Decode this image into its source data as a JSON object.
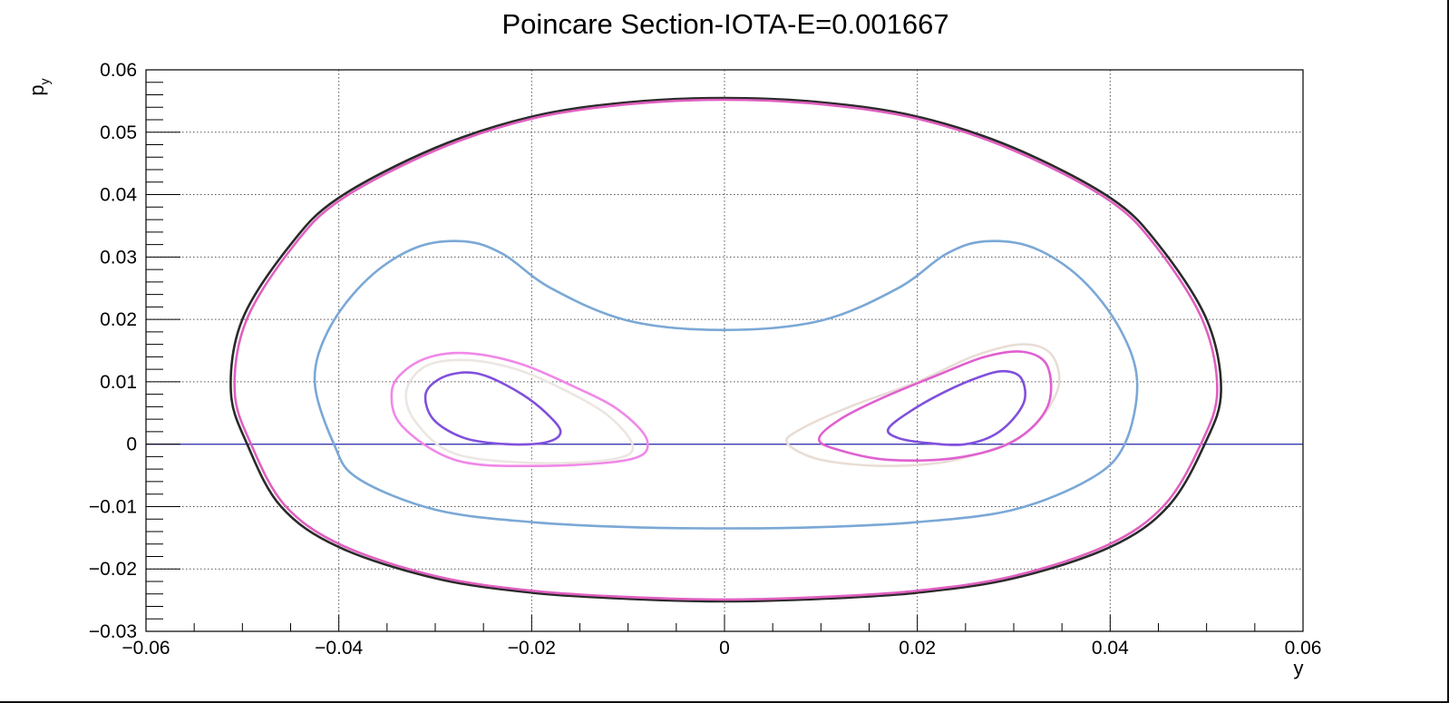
{
  "chart_data": {
    "type": "scatter",
    "title": "Poincare Section-IOTA-E=0.001667",
    "xlabel": "y",
    "ylabel_main": "p",
    "ylabel_sub": "y",
    "xlim": [
      -0.06,
      0.06
    ],
    "ylim": [
      -0.03,
      0.06
    ],
    "grid": true,
    "x_ticks": [
      -0.06,
      -0.04,
      -0.02,
      0,
      0.02,
      0.04,
      0.06
    ],
    "x_tick_labels": [
      "−0.06",
      "−0.04",
      "−0.02",
      "0",
      "0.02",
      "0.04",
      "0.06"
    ],
    "y_ticks": [
      -0.03,
      -0.02,
      -0.01,
      0,
      0.01,
      0.02,
      0.03,
      0.04,
      0.05,
      0.06
    ],
    "y_tick_labels": [
      "−0.03",
      "−0.02",
      "−0.01",
      "0",
      "0.01",
      "0.02",
      "0.03",
      "0.04",
      "0.05",
      "0.06"
    ],
    "reference_line": {
      "y": 0,
      "color": "#3b3bb0"
    },
    "series": [
      {
        "color": "#2a2a2a",
        "points": [
          [
            -0.0512,
            0.0085
          ],
          [
            -0.0495,
            0.0
          ],
          [
            -0.046,
            -0.01
          ],
          [
            -0.04,
            -0.0165
          ],
          [
            -0.03,
            -0.0215
          ],
          [
            -0.02,
            -0.0238
          ],
          [
            -0.01,
            -0.0248
          ],
          [
            0.0,
            -0.0252
          ],
          [
            0.01,
            -0.0248
          ],
          [
            0.02,
            -0.0238
          ],
          [
            0.03,
            -0.0215
          ],
          [
            0.04,
            -0.0165
          ],
          [
            0.046,
            -0.01
          ],
          [
            0.0498,
            0.0
          ],
          [
            0.0515,
            0.0085
          ],
          [
            0.05,
            0.02
          ],
          [
            0.045,
            0.032
          ],
          [
            0.04,
            0.0395
          ],
          [
            0.03,
            0.0475
          ],
          [
            0.02,
            0.0525
          ],
          [
            0.01,
            0.0548
          ],
          [
            0.0,
            0.0555
          ],
          [
            -0.01,
            0.0548
          ],
          [
            -0.02,
            0.0525
          ],
          [
            -0.03,
            0.0475
          ],
          [
            -0.04,
            0.0395
          ],
          [
            -0.045,
            0.032
          ],
          [
            -0.05,
            0.02
          ]
        ]
      },
      {
        "color": "#e060c0",
        "points": [
          [
            -0.0508,
            0.0085
          ],
          [
            -0.0491,
            0.0
          ],
          [
            -0.0456,
            -0.0098
          ],
          [
            -0.0397,
            -0.0162
          ],
          [
            -0.0298,
            -0.0212
          ],
          [
            -0.0199,
            -0.0235
          ],
          [
            -0.0099,
            -0.0245
          ],
          [
            0.0,
            -0.0249
          ],
          [
            0.0099,
            -0.0245
          ],
          [
            0.0199,
            -0.0235
          ],
          [
            0.0298,
            -0.0212
          ],
          [
            0.0397,
            -0.0162
          ],
          [
            0.0456,
            -0.0098
          ],
          [
            0.0494,
            0.0
          ],
          [
            0.0511,
            0.0085
          ],
          [
            0.0496,
            0.0198
          ],
          [
            0.0447,
            0.0318
          ],
          [
            0.0397,
            0.0393
          ],
          [
            0.0298,
            0.0472
          ],
          [
            0.0199,
            0.0522
          ],
          [
            0.0099,
            0.0545
          ],
          [
            0.0,
            0.0552
          ],
          [
            -0.0099,
            0.0545
          ],
          [
            -0.0199,
            0.0522
          ],
          [
            -0.0298,
            0.0472
          ],
          [
            -0.0397,
            0.0393
          ],
          [
            -0.0447,
            0.0318
          ],
          [
            -0.0496,
            0.0198
          ]
        ]
      },
      {
        "color": "#7aa8d6",
        "points": [
          [
            0.0,
            0.0183
          ],
          [
            0.01,
            0.0198
          ],
          [
            0.018,
            0.025
          ],
          [
            0.023,
            0.0305
          ],
          [
            0.027,
            0.0325
          ],
          [
            0.032,
            0.0315
          ],
          [
            0.037,
            0.0265
          ],
          [
            0.041,
            0.0185
          ],
          [
            0.0428,
            0.01
          ],
          [
            0.0415,
            0.0
          ],
          [
            0.038,
            -0.0055
          ],
          [
            0.03,
            -0.0105
          ],
          [
            0.02,
            -0.0125
          ],
          [
            0.01,
            -0.0133
          ],
          [
            0.0,
            -0.0135
          ],
          [
            -0.01,
            -0.0133
          ],
          [
            -0.02,
            -0.0125
          ],
          [
            -0.03,
            -0.0105
          ],
          [
            -0.038,
            -0.0055
          ],
          [
            -0.0405,
            0.0
          ],
          [
            -0.0425,
            0.01
          ],
          [
            -0.041,
            0.0185
          ],
          [
            -0.037,
            0.0265
          ],
          [
            -0.032,
            0.0315
          ],
          [
            -0.027,
            0.0325
          ],
          [
            -0.023,
            0.0305
          ],
          [
            -0.018,
            0.025
          ],
          [
            -0.01,
            0.0198
          ]
        ]
      },
      {
        "color": "#f088e8",
        "points": [
          [
            -0.0345,
            0.0085
          ],
          [
            -0.033,
            0.012
          ],
          [
            -0.03,
            0.0142
          ],
          [
            -0.026,
            0.0145
          ],
          [
            -0.021,
            0.0128
          ],
          [
            -0.016,
            0.0095
          ],
          [
            -0.011,
            0.0055
          ],
          [
            -0.008,
            0.0005
          ],
          [
            -0.01,
            -0.0025
          ],
          [
            -0.02,
            -0.0035
          ],
          [
            -0.028,
            -0.0025
          ],
          [
            -0.0335,
            0.003
          ]
        ]
      },
      {
        "color": "#ece6e2",
        "points": [
          [
            -0.033,
            0.0085
          ],
          [
            -0.031,
            0.0125
          ],
          [
            -0.027,
            0.0135
          ],
          [
            -0.022,
            0.0122
          ],
          [
            -0.017,
            0.009
          ],
          [
            -0.012,
            0.0045
          ],
          [
            -0.0095,
            -0.0005
          ],
          [
            -0.012,
            -0.0025
          ],
          [
            -0.02,
            -0.003
          ],
          [
            -0.028,
            -0.0015
          ],
          [
            -0.032,
            0.0035
          ]
        ]
      },
      {
        "color": "#8050dc",
        "points": [
          [
            -0.031,
            0.008
          ],
          [
            -0.0295,
            0.0105
          ],
          [
            -0.027,
            0.0115
          ],
          [
            -0.0245,
            0.0108
          ],
          [
            -0.021,
            0.008
          ],
          [
            -0.0185,
            0.005
          ],
          [
            -0.017,
            0.002
          ],
          [
            -0.0185,
            0.0003
          ],
          [
            -0.0225,
            0.0
          ],
          [
            -0.027,
            0.001
          ],
          [
            -0.0302,
            0.004
          ]
        ]
      },
      {
        "color": "#e8ddd6",
        "points": [
          [
            0.0065,
            0.0002
          ],
          [
            0.008,
            0.0025
          ],
          [
            0.013,
            0.006
          ],
          [
            0.02,
            0.01
          ],
          [
            0.026,
            0.0142
          ],
          [
            0.031,
            0.016
          ],
          [
            0.034,
            0.0142
          ],
          [
            0.0345,
            0.0085
          ],
          [
            0.031,
            0.0015
          ],
          [
            0.024,
            -0.0025
          ],
          [
            0.017,
            -0.0035
          ],
          [
            0.01,
            -0.0025
          ]
        ]
      },
      {
        "color": "#e060d0",
        "points": [
          [
            0.0098,
            0.0008
          ],
          [
            0.012,
            0.004
          ],
          [
            0.0165,
            0.0075
          ],
          [
            0.022,
            0.011
          ],
          [
            0.027,
            0.014
          ],
          [
            0.031,
            0.0148
          ],
          [
            0.0335,
            0.0125
          ],
          [
            0.0335,
            0.006
          ],
          [
            0.03,
            0.0005
          ],
          [
            0.024,
            -0.0022
          ],
          [
            0.017,
            -0.0025
          ],
          [
            0.012,
            -0.001
          ]
        ]
      },
      {
        "color": "#8050dc",
        "points": [
          [
            0.017,
            0.0025
          ],
          [
            0.0195,
            0.0055
          ],
          [
            0.023,
            0.0085
          ],
          [
            0.0265,
            0.0108
          ],
          [
            0.029,
            0.0117
          ],
          [
            0.0308,
            0.0105
          ],
          [
            0.031,
            0.0065
          ],
          [
            0.0285,
            0.002
          ],
          [
            0.025,
            0.0
          ],
          [
            0.021,
            0.0002
          ],
          [
            0.018,
            0.001
          ]
        ]
      }
    ]
  }
}
